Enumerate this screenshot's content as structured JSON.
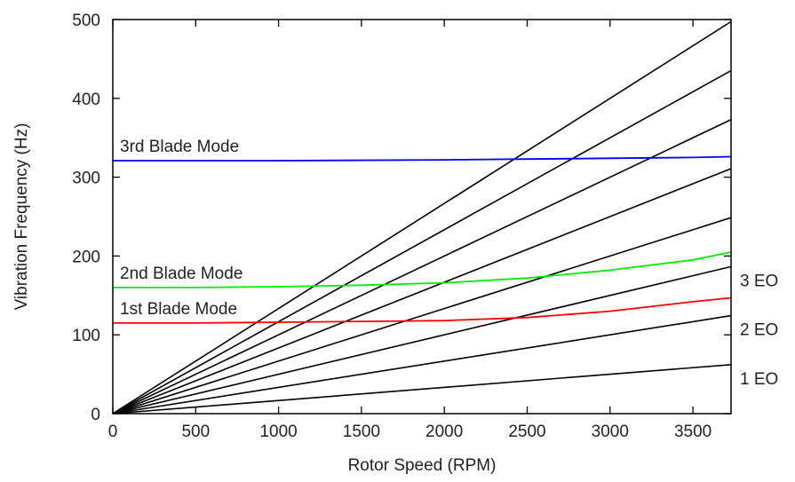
{
  "chart_data": {
    "type": "line",
    "xlabel": "Rotor Speed (RPM)",
    "ylabel": "Vibration Frequency (Hz)",
    "xlim": [
      0,
      3730
    ],
    "ylim": [
      0,
      500
    ],
    "x_ticks": [
      "0",
      "500",
      "1000",
      "1500",
      "2000",
      "2500",
      "3000",
      "3500"
    ],
    "x_tick_values": [
      0,
      500,
      1000,
      1500,
      2000,
      2500,
      3000,
      3500
    ],
    "y_ticks": [
      "0",
      "100",
      "200",
      "300",
      "400",
      "500"
    ],
    "y_tick_values": [
      0,
      100,
      200,
      300,
      400,
      500
    ],
    "grid": false,
    "engine_order_lines": {
      "orders": [
        1,
        2,
        3,
        4,
        5,
        6,
        7,
        8
      ],
      "labels": [
        {
          "order": 1,
          "text": "1 EO"
        },
        {
          "order": 2,
          "text": "2 EO"
        },
        {
          "order": 3,
          "text": "3 EO"
        }
      ],
      "color": "#000000"
    },
    "series": [
      {
        "name": "3rd Blade Mode",
        "color": "#0000ff",
        "x": [
          0,
          1000,
          2000,
          2500,
          3000,
          3500,
          3730
        ],
        "y": [
          321,
          321,
          322,
          323,
          324,
          325,
          326
        ]
      },
      {
        "name": "2nd Blade Mode",
        "color": "#00ee00",
        "x": [
          0,
          500,
          1000,
          1500,
          2000,
          2500,
          3000,
          3500,
          3730
        ],
        "y": [
          160,
          160,
          161,
          163,
          166,
          172,
          182,
          195,
          205
        ]
      },
      {
        "name": "1st Blade Mode",
        "color": "#ff0000",
        "x": [
          0,
          500,
          1000,
          1500,
          2000,
          2500,
          3000,
          3500,
          3730
        ],
        "y": [
          115,
          115,
          116,
          117,
          118,
          122,
          130,
          142,
          147
        ]
      }
    ]
  }
}
